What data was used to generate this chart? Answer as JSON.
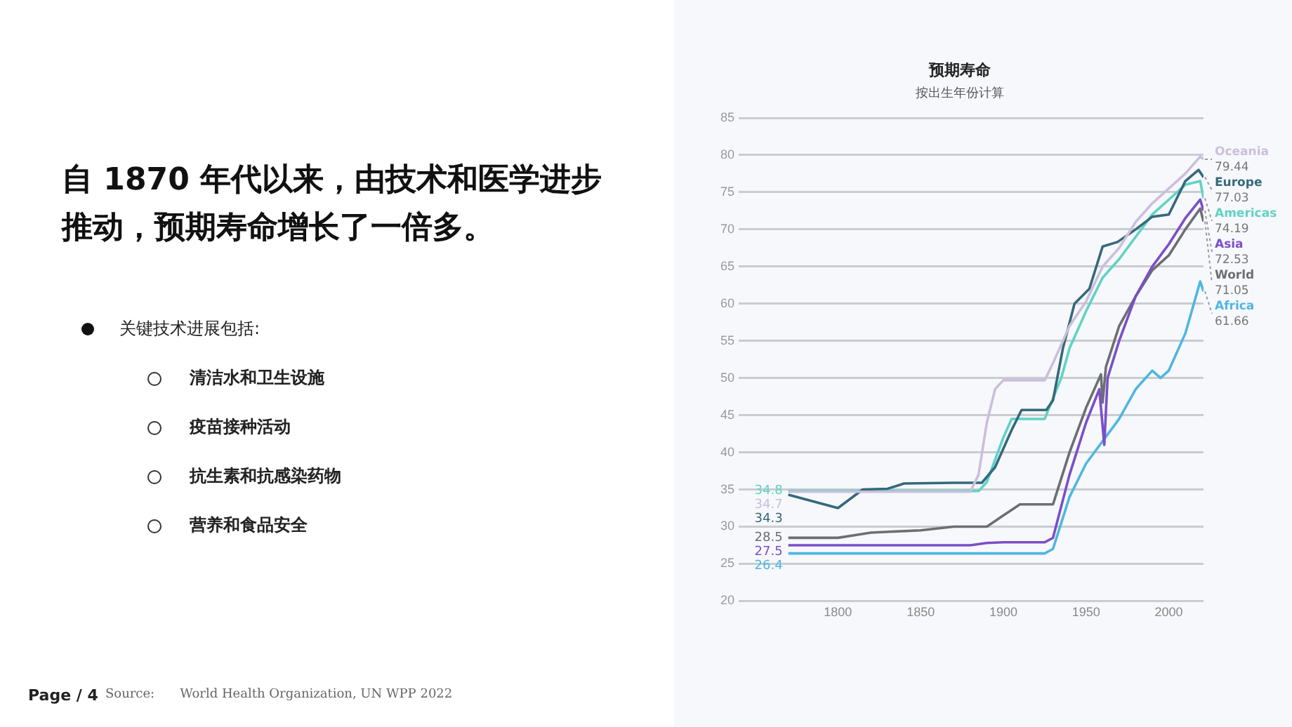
{
  "chart_data": [
    {
      "type": "other",
      "title": "自 1870 年代以来，由技术和医学进步推动，预期寿命增长了一倍多。",
      "annotations": [
        "关键技术进展包括:",
        "清洁水和卫生设施",
        "疫苗接种活动",
        "抗生素和抗感染药物",
        "营养和食品安全",
        "Page / 4"
      ]
    },
    {
      "type": "line",
      "title": "预期寿命",
      "subtitle": "按出生年份计算",
      "annotations": [
        "Source:",
        "World Health Organization, UN WPP 2022"
      ],
      "xlim": [
        1740,
        2021
      ],
      "xticks": [
        1800,
        1850,
        1900,
        1950,
        2000
      ],
      "ylim": [
        20,
        85
      ],
      "yticks": [
        20,
        25,
        30,
        35,
        40,
        45,
        50,
        55,
        60,
        65,
        70,
        75,
        80,
        85
      ],
      "grid": "y",
      "legend": false,
      "series": [
        {
          "name": "Oceania",
          "color": "#cbbfdc",
          "x": [
            1770,
            1880,
            1885,
            1890,
            1895,
            1900,
            1925,
            1930,
            1940,
            1950,
            1960,
            1970,
            1980,
            1990,
            2000,
            2010,
            2019,
            2021
          ],
          "values": [
            34.7,
            34.7,
            37,
            44,
            48.5,
            49.7,
            49.7,
            52,
            57,
            60.3,
            65,
            67.5,
            71,
            73.5,
            75.5,
            77.5,
            79.8,
            79.44
          ],
          "value_labels": [
            "34.7",
            null,
            null,
            null,
            null,
            null,
            null,
            null,
            null,
            null,
            null,
            null,
            null,
            null,
            null,
            null,
            null,
            "79.44"
          ]
        },
        {
          "name": "Europe",
          "color": "#35697c",
          "x": [
            1770,
            1800,
            1815,
            1830,
            1840,
            1870,
            1887,
            1895,
            1905,
            1911,
            1926,
            1930,
            1936,
            1943,
            1952,
            1960,
            1969,
            1980,
            1990,
            2000,
            2010,
            2018,
            2021
          ],
          "values": [
            34.3,
            32.5,
            35,
            35.1,
            35.8,
            35.9,
            35.9,
            38,
            43,
            45.7,
            45.7,
            47,
            54,
            60,
            62,
            67.7,
            68.3,
            70,
            71.7,
            72,
            76.5,
            78,
            77.03
          ],
          "value_labels": [
            "34.3",
            null,
            null,
            null,
            null,
            null,
            null,
            null,
            null,
            null,
            null,
            null,
            null,
            null,
            null,
            null,
            null,
            null,
            null,
            null,
            null,
            null,
            "77.03"
          ]
        },
        {
          "name": "Americas",
          "color": "#5fd3c4",
          "x": [
            1770,
            1885,
            1890,
            1900,
            1905,
            1925,
            1935,
            1940,
            1950,
            1960,
            1970,
            1980,
            1990,
            2000,
            2010,
            2019,
            2021
          ],
          "values": [
            34.8,
            34.8,
            36,
            42,
            44.5,
            44.5,
            50,
            54,
            59,
            63.5,
            66,
            69,
            72,
            74,
            76,
            76.5,
            74.19
          ],
          "value_labels": [
            "34.8",
            null,
            null,
            null,
            null,
            null,
            null,
            null,
            null,
            null,
            null,
            null,
            null,
            null,
            null,
            null,
            "74.19"
          ]
        },
        {
          "name": "Asia",
          "color": "#7a4fc9",
          "x": [
            1770,
            1880,
            1890,
            1900,
            1925,
            1930,
            1940,
            1950,
            1958,
            1961,
            1963,
            1970,
            1980,
            1990,
            2000,
            2010,
            2019,
            2021
          ],
          "values": [
            27.5,
            27.5,
            27.8,
            27.9,
            27.9,
            28.5,
            37,
            44,
            48.5,
            41,
            50,
            55,
            61,
            65,
            68,
            71.5,
            74,
            72.53
          ],
          "value_labels": [
            "27.5",
            null,
            null,
            null,
            null,
            null,
            null,
            null,
            null,
            null,
            null,
            null,
            null,
            null,
            null,
            null,
            null,
            "72.53"
          ]
        },
        {
          "name": "World",
          "color": "#6b6f72",
          "x": [
            1770,
            1800,
            1820,
            1850,
            1870,
            1890,
            1900,
            1910,
            1930,
            1940,
            1950,
            1959,
            1960,
            1962,
            1970,
            1980,
            1990,
            2000,
            2010,
            2019,
            2021
          ],
          "values": [
            28.5,
            28.5,
            29.2,
            29.5,
            30,
            30,
            31.5,
            33,
            33,
            40,
            46,
            50.5,
            46.7,
            51.5,
            57,
            61,
            64.5,
            66.5,
            70,
            72.8,
            71.05
          ],
          "value_labels": [
            "28.5",
            null,
            null,
            null,
            null,
            null,
            null,
            null,
            null,
            null,
            null,
            null,
            null,
            null,
            null,
            null,
            null,
            null,
            null,
            null,
            "71.05"
          ]
        },
        {
          "name": "Africa",
          "color": "#4fb6e0",
          "x": [
            1770,
            1925,
            1930,
            1940,
            1950,
            1960,
            1970,
            1980,
            1990,
            1995,
            2000,
            2010,
            2019,
            2021
          ],
          "values": [
            26.4,
            26.4,
            27,
            34,
            38.5,
            41.5,
            44.5,
            48.5,
            51,
            50,
            51,
            56,
            63,
            61.66
          ],
          "value_labels": [
            "26.4",
            null,
            null,
            null,
            null,
            null,
            null,
            null,
            null,
            null,
            null,
            null,
            null,
            "61.66"
          ]
        }
      ]
    }
  ]
}
